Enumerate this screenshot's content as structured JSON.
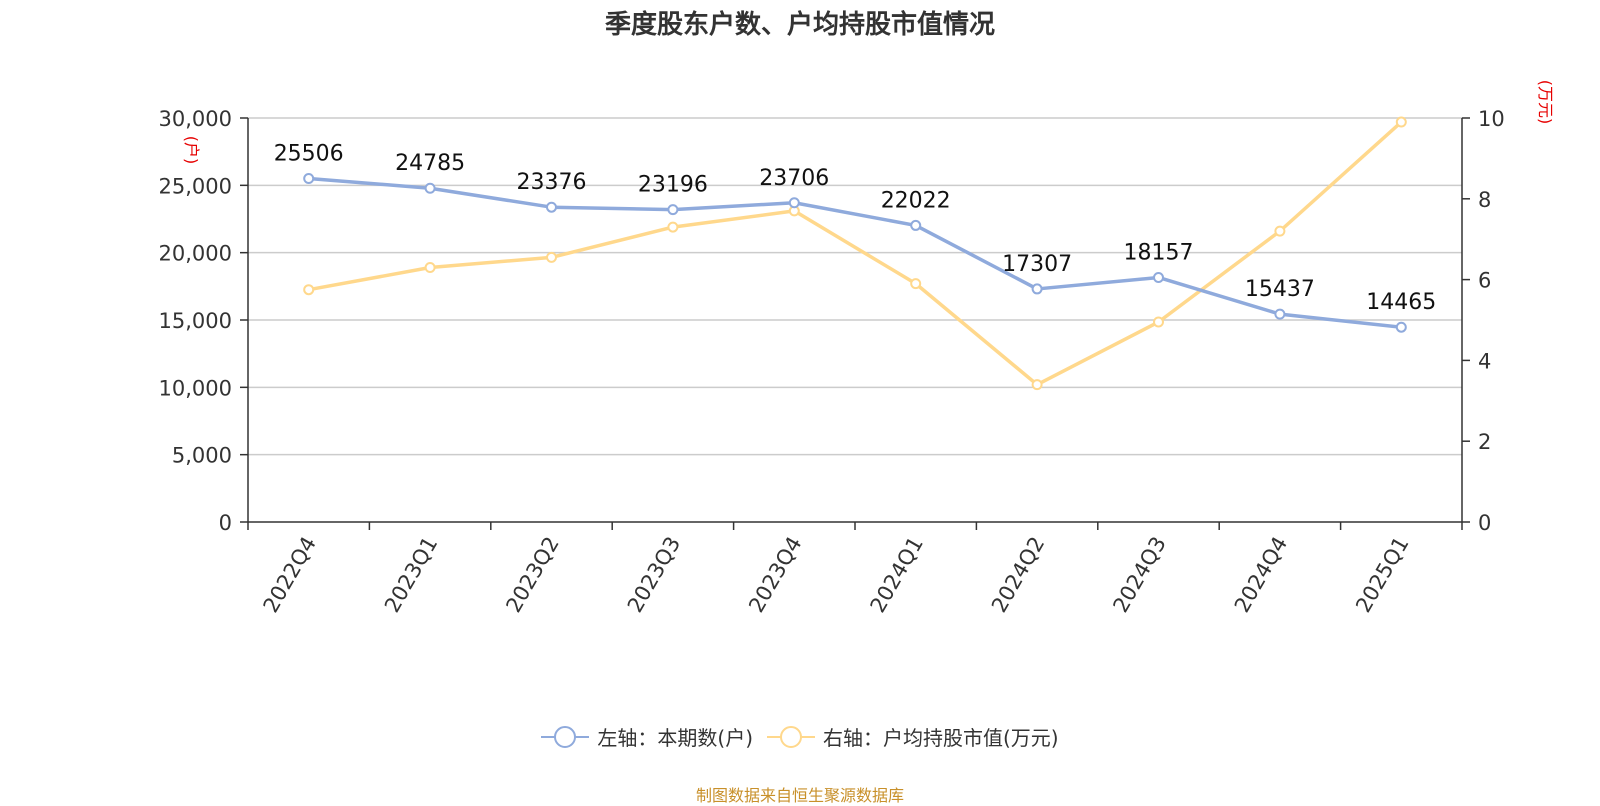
{
  "title": "季度股东户数、户均持股市值情况",
  "source": "制图数据来自恒生聚源数据库",
  "colors": {
    "left_series": "#8faadc",
    "right_series": "#ffd88c",
    "unit_label": "#e60000",
    "source": "#c8902a"
  },
  "chart_data": {
    "type": "line",
    "categories": [
      "2022Q4",
      "2023Q1",
      "2023Q2",
      "2023Q3",
      "2023Q4",
      "2024Q1",
      "2024Q2",
      "2024Q3",
      "2024Q4",
      "2025Q1"
    ],
    "left_axis": {
      "unit": "(户)",
      "ylim": [
        0,
        30000
      ],
      "ticks": [
        "0",
        "5,000",
        "10,000",
        "15,000",
        "20,000",
        "25,000",
        "30,000"
      ]
    },
    "right_axis": {
      "unit": "(万元)",
      "ylim": [
        0,
        10
      ],
      "ticks": [
        "0",
        "2",
        "4",
        "6",
        "8",
        "10"
      ]
    },
    "grid": true,
    "legend_position": "bottom",
    "series": [
      {
        "name": "左轴：本期数(户)",
        "axis": "left",
        "values": [
          25506,
          24785,
          23376,
          23196,
          23706,
          22022,
          17307,
          18157,
          15437,
          14465
        ],
        "labels": [
          "25506",
          "24785",
          "23376",
          "23196",
          "23706",
          "22022",
          "17307",
          "18157",
          "15437",
          "14465"
        ]
      },
      {
        "name": "右轴：户均持股市值(万元)",
        "axis": "right",
        "values": [
          5.75,
          6.3,
          6.55,
          7.3,
          7.7,
          5.9,
          3.4,
          4.95,
          7.2,
          9.9
        ]
      }
    ]
  }
}
